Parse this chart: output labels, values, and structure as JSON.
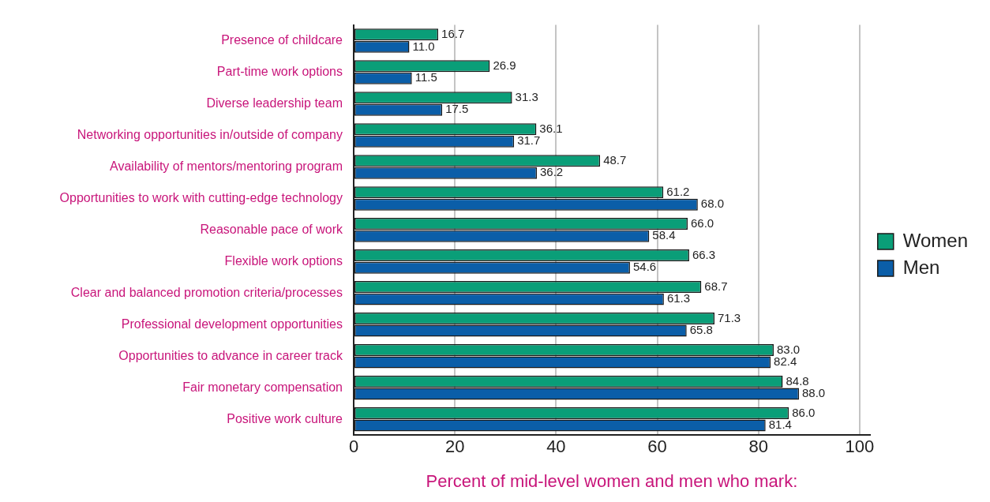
{
  "chart_data": {
    "type": "bar",
    "orientation": "horizontal",
    "xlabel": "Percent of mid-level women and men who mark:",
    "categories": [
      "Presence of childcare",
      "Part-time work options",
      "Diverse leadership team",
      "Networking opportunities in/outside of company",
      "Availability of mentors/mentoring program",
      "Opportunities to work with cutting-edge technology",
      "Reasonable pace of work",
      "Flexible work options",
      "Clear and balanced promotion criteria/processes",
      "Professional development opportunities",
      "Opportunities to advance in career track",
      "Fair monetary compensation",
      "Positive work culture"
    ],
    "series": [
      {
        "name": "Women",
        "color": "#0a9e78",
        "values": [
          16.7,
          26.9,
          31.3,
          36.1,
          48.7,
          61.2,
          66,
          66.3,
          68.7,
          71.3,
          83,
          84.8,
          86
        ],
        "value_labels": [
          "16.7",
          "26.9",
          "31.3",
          "36.1",
          "48.7",
          "61.2",
          "66.0",
          "66.3",
          "68.7",
          "71.3",
          "83.0",
          "84.8",
          "86.0"
        ]
      },
      {
        "name": "Men",
        "color": "#0b5ea8",
        "values": [
          11,
          11.5,
          17.5,
          31.7,
          36.2,
          68,
          58.4,
          54.6,
          61.3,
          65.8,
          82.4,
          88,
          81.4
        ],
        "value_labels": [
          "11.0",
          "11.5",
          "17.5",
          "31.7",
          "36.2",
          "68.0",
          "58.4",
          "54.6",
          "61.3",
          "65.8",
          "82.4",
          "88.0",
          "81.4"
        ]
      }
    ],
    "xlim": [
      0,
      102
    ],
    "xticks": [
      0,
      20,
      40,
      60,
      80,
      100
    ],
    "grid": "x",
    "legend": "right"
  }
}
